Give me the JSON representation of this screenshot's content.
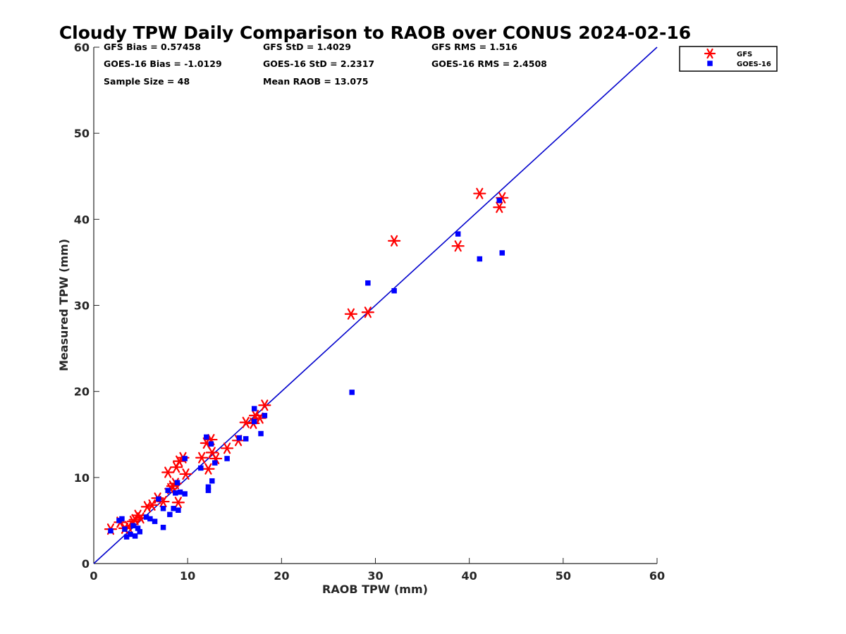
{
  "chart_data": {
    "type": "scatter",
    "title": "Cloudy TPW Daily Comparison to RAOB over CONUS 2024-02-16",
    "xlabel": "RAOB TPW (mm)",
    "ylabel": "Measured TPW (mm)",
    "xlim": [
      0,
      60
    ],
    "ylim": [
      0,
      60
    ],
    "xticks": [
      0,
      10,
      20,
      30,
      40,
      50,
      60
    ],
    "yticks": [
      0,
      10,
      20,
      30,
      40,
      50,
      60
    ],
    "grid": false,
    "legend_position": "top-right outside",
    "reference_line": {
      "from": [
        0,
        0
      ],
      "to": [
        60,
        60
      ],
      "color": "#0000cc"
    },
    "stats": [
      {
        "text": "GFS Bias = 0.57458",
        "col": 0,
        "row": 0
      },
      {
        "text": "GFS StD = 1.4029",
        "col": 1,
        "row": 0
      },
      {
        "text": "GFS RMS = 1.516",
        "col": 2,
        "row": 0
      },
      {
        "text": "GOES-16 Bias = -1.0129",
        "col": 0,
        "row": 1
      },
      {
        "text": "GOES-16 StD = 2.2317",
        "col": 1,
        "row": 1
      },
      {
        "text": "GOES-16 RMS = 2.4508",
        "col": 2,
        "row": 1
      },
      {
        "text": "Sample Size = 48",
        "col": 0,
        "row": 2
      },
      {
        "text": "Mean RAOB = 13.075",
        "col": 1,
        "row": 2
      }
    ],
    "series": [
      {
        "name": "GFS",
        "marker": "asterisk",
        "color": "#ff0000",
        "points": [
          [
            1.8,
            4.0
          ],
          [
            2.8,
            4.8
          ],
          [
            3.3,
            4.1
          ],
          [
            3.7,
            4.3
          ],
          [
            4.2,
            4.9
          ],
          [
            4.4,
            5.1
          ],
          [
            4.7,
            5.6
          ],
          [
            5.0,
            5.3
          ],
          [
            5.7,
            6.6
          ],
          [
            6.2,
            6.8
          ],
          [
            6.8,
            7.6
          ],
          [
            7.4,
            7.2
          ],
          [
            7.9,
            10.6
          ],
          [
            8.2,
            8.7
          ],
          [
            8.4,
            9.0
          ],
          [
            8.7,
            9.3
          ],
          [
            8.8,
            11.2
          ],
          [
            9.0,
            7.1
          ],
          [
            9.1,
            11.9
          ],
          [
            9.5,
            12.3
          ],
          [
            9.8,
            10.4
          ],
          [
            11.5,
            12.3
          ],
          [
            12.0,
            14.0
          ],
          [
            12.2,
            11.0
          ],
          [
            12.5,
            14.4
          ],
          [
            12.6,
            12.9
          ],
          [
            13.0,
            12.2
          ],
          [
            14.2,
            13.4
          ],
          [
            15.4,
            14.3
          ],
          [
            16.2,
            16.4
          ],
          [
            17.0,
            16.3
          ],
          [
            17.2,
            17.2
          ],
          [
            17.7,
            16.9
          ],
          [
            18.2,
            18.4
          ],
          [
            27.4,
            29.0
          ],
          [
            29.2,
            29.2
          ],
          [
            32.0,
            37.5
          ],
          [
            38.8,
            36.9
          ],
          [
            41.1,
            43.0
          ],
          [
            43.2,
            41.4
          ],
          [
            43.5,
            42.5
          ]
        ]
      },
      {
        "name": "GOES-16",
        "marker": "square",
        "color": "#0000ff",
        "points": [
          [
            1.8,
            3.8
          ],
          [
            2.7,
            5.0
          ],
          [
            3.0,
            5.2
          ],
          [
            3.3,
            4.0
          ],
          [
            3.5,
            3.1
          ],
          [
            3.9,
            3.4
          ],
          [
            4.2,
            4.4
          ],
          [
            4.4,
            3.2
          ],
          [
            4.7,
            4.1
          ],
          [
            4.9,
            3.7
          ],
          [
            5.6,
            5.4
          ],
          [
            6.0,
            5.2
          ],
          [
            6.5,
            4.9
          ],
          [
            6.9,
            7.5
          ],
          [
            7.4,
            6.4
          ],
          [
            7.4,
            4.2
          ],
          [
            7.9,
            8.5
          ],
          [
            8.1,
            5.7
          ],
          [
            8.5,
            6.4
          ],
          [
            8.7,
            8.2
          ],
          [
            8.9,
            9.4
          ],
          [
            9.0,
            6.2
          ],
          [
            9.2,
            8.3
          ],
          [
            9.7,
            8.1
          ],
          [
            9.7,
            12.2
          ],
          [
            11.4,
            11.1
          ],
          [
            12.0,
            14.7
          ],
          [
            12.2,
            8.9
          ],
          [
            12.2,
            8.5
          ],
          [
            12.5,
            13.9
          ],
          [
            12.6,
            9.6
          ],
          [
            12.9,
            11.7
          ],
          [
            14.2,
            12.2
          ],
          [
            15.5,
            14.6
          ],
          [
            16.2,
            14.5
          ],
          [
            17.1,
            18.0
          ],
          [
            17.1,
            16.5
          ],
          [
            17.8,
            15.1
          ],
          [
            18.2,
            17.2
          ],
          [
            27.5,
            19.9
          ],
          [
            29.2,
            32.6
          ],
          [
            32.0,
            31.7
          ],
          [
            38.8,
            38.3
          ],
          [
            41.1,
            35.4
          ],
          [
            43.2,
            42.2
          ],
          [
            43.5,
            36.1
          ]
        ]
      }
    ]
  }
}
